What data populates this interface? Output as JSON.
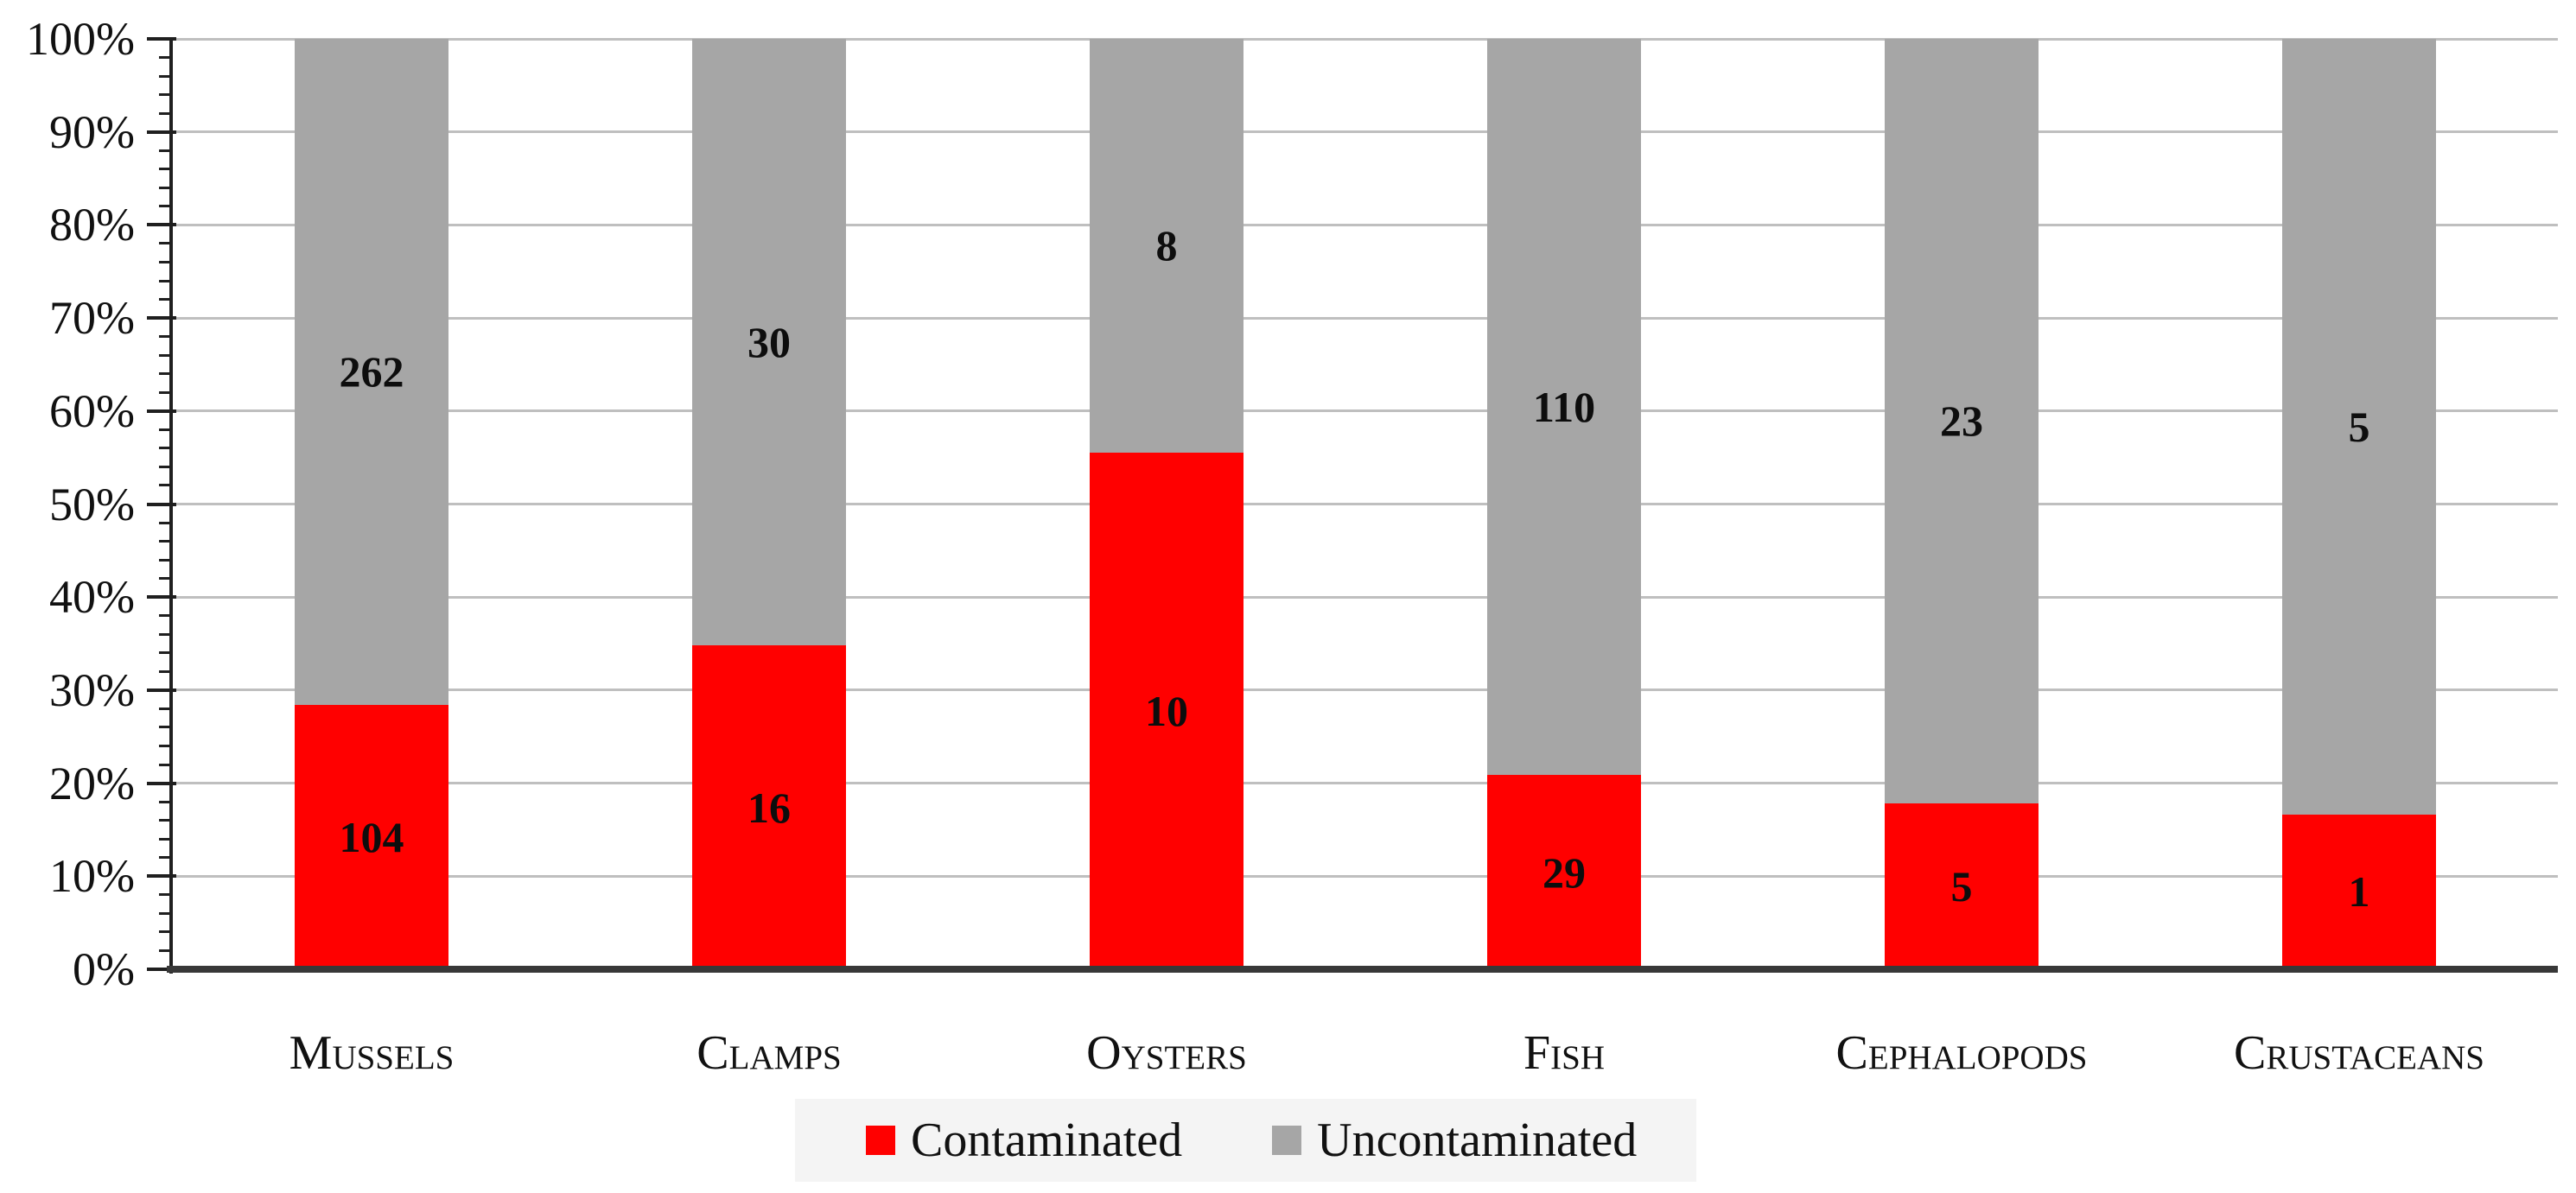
{
  "chart_data": {
    "type": "bar",
    "subtype": "stacked-100-percent",
    "title": "",
    "categories": [
      "Mussels",
      "Clamps",
      "Oysters",
      "Fish",
      "Cephalopods",
      "Crustaceans"
    ],
    "series": [
      {
        "name": "Contaminated",
        "color": "#ff0000",
        "values": [
          104,
          16,
          10,
          29,
          5,
          1
        ]
      },
      {
        "name": "Uncontaminated",
        "color": "#a6a6a6",
        "values": [
          262,
          30,
          8,
          110,
          23,
          5
        ]
      }
    ],
    "y_axis": {
      "min": 0,
      "max": 100,
      "major_step": 10,
      "minor_step": 2,
      "tick_labels": [
        "0%",
        "10%",
        "20%",
        "30%",
        "40%",
        "50%",
        "60%",
        "70%",
        "80%",
        "90%",
        "100%"
      ]
    },
    "xlabel": "",
    "ylabel": "",
    "grid": true,
    "legend_position": "bottom",
    "colors": {
      "gridline": "#bfbfbf",
      "axis_line": "#1f1f1f",
      "x_axis_line": "#383838",
      "legend_background": "#f4f4f4",
      "label_text": "#0d0d0d"
    }
  }
}
